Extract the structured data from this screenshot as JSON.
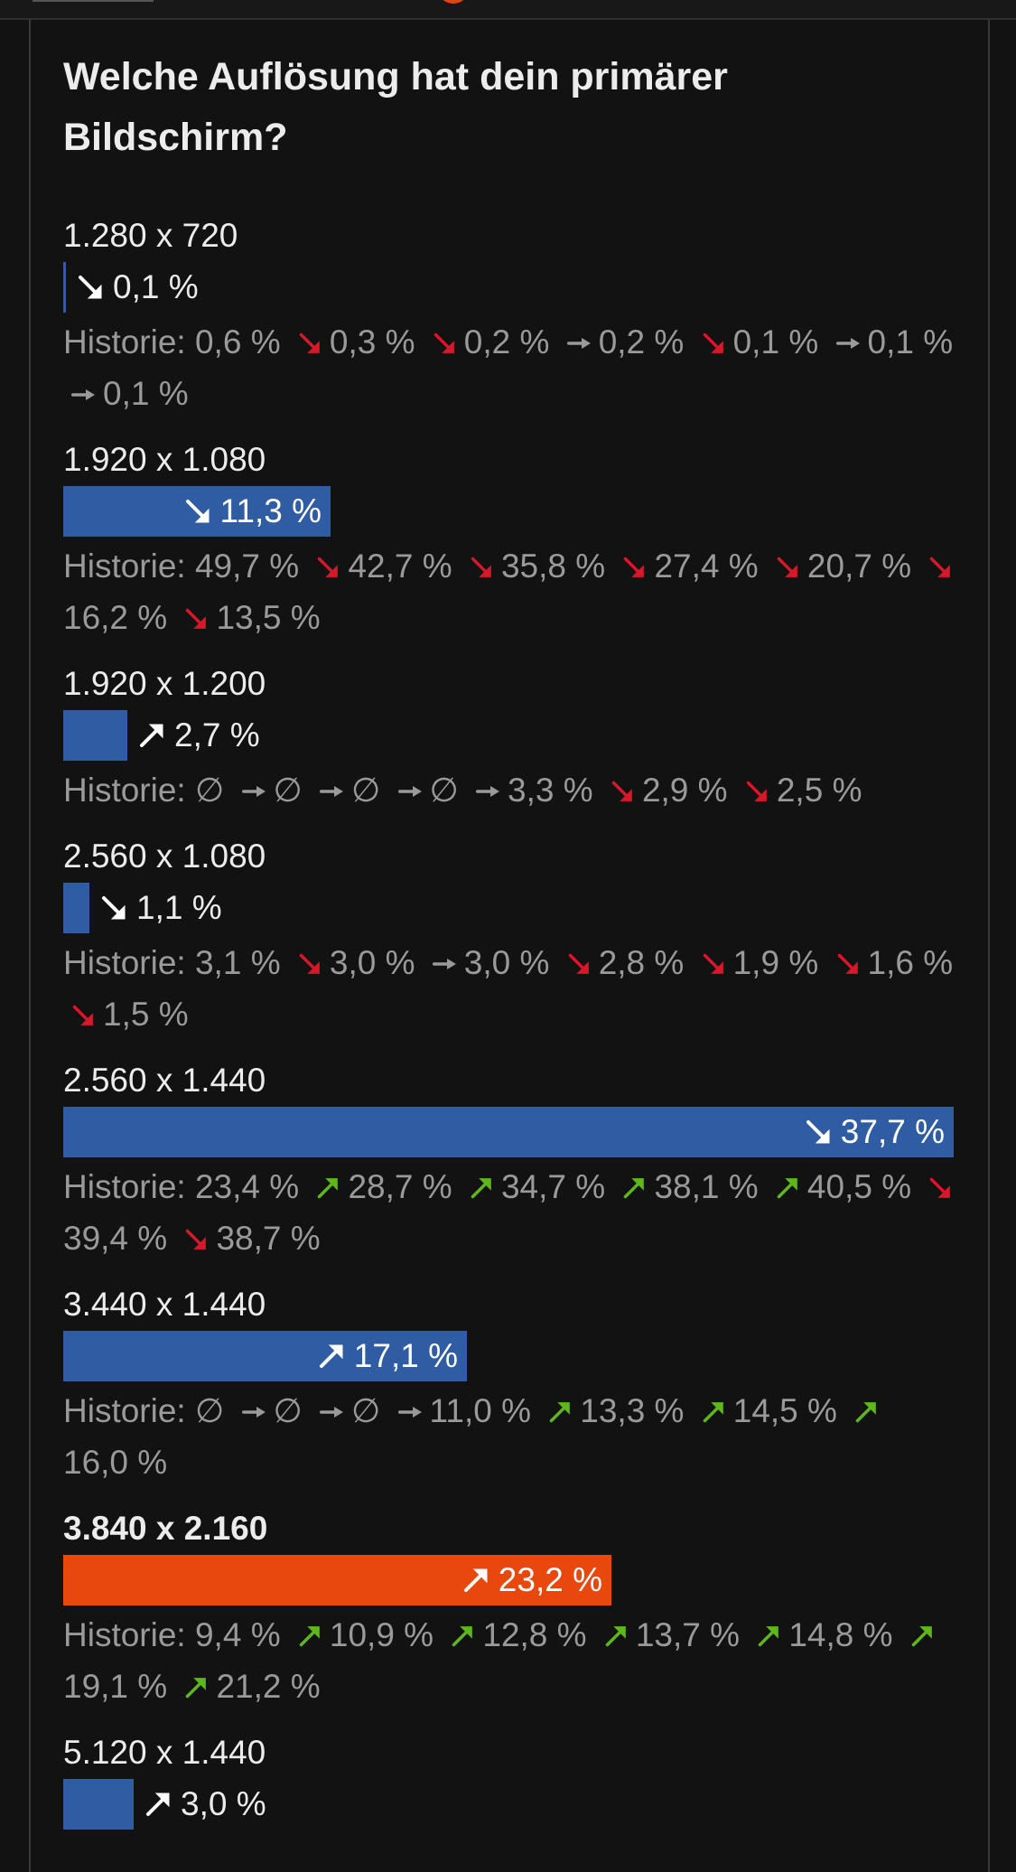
{
  "poll": {
    "title": "Welche Auflösung hat dein primärer Bildschirm?",
    "history_prefix": "Historie:",
    "colors": {
      "bar": "#2f5ca3",
      "bar_selected": "#e8480e",
      "trend_up": "#5fb61d",
      "trend_down": "#d9162a",
      "trend_flat": "#9a9a9a"
    },
    "options": [
      {
        "label": "1.280 x 720",
        "percent_text": "0,1 %",
        "percent": 0.1,
        "trend": "down",
        "selected": false,
        "history": [
          {
            "value": "0,6 %"
          },
          {
            "arrow": "down",
            "value": "0,3 %"
          },
          {
            "arrow": "down",
            "value": "0,2 %"
          },
          {
            "arrow": "flat",
            "value": "0,2 %"
          },
          {
            "arrow": "down",
            "value": "0,1 %"
          },
          {
            "arrow": "flat",
            "value": "0,1 %"
          },
          {
            "arrow": "flat",
            "value": "0,1 %"
          }
        ]
      },
      {
        "label": "1.920 x 1.080",
        "percent_text": "11,3 %",
        "percent": 11.3,
        "trend": "down",
        "selected": false,
        "history": [
          {
            "value": "49,7 %"
          },
          {
            "arrow": "down",
            "value": "42,7 %"
          },
          {
            "arrow": "down",
            "value": "35,8 %"
          },
          {
            "arrow": "down",
            "value": "27,4 %"
          },
          {
            "arrow": "down",
            "value": "20,7 %"
          },
          {
            "arrow": "down",
            "value": "16,2 %"
          },
          {
            "arrow": "down",
            "value": "13,5 %"
          }
        ]
      },
      {
        "label": "1.920 x 1.200",
        "percent_text": "2,7 %",
        "percent": 2.7,
        "trend": "up",
        "selected": false,
        "history": [
          {
            "value": "∅"
          },
          {
            "arrow": "flat",
            "value": "∅"
          },
          {
            "arrow": "flat",
            "value": "∅"
          },
          {
            "arrow": "flat",
            "value": "∅"
          },
          {
            "arrow": "flat",
            "value": "3,3 %"
          },
          {
            "arrow": "down",
            "value": "2,9 %"
          },
          {
            "arrow": "down",
            "value": "2,5 %"
          }
        ]
      },
      {
        "label": "2.560 x 1.080",
        "percent_text": "1,1 %",
        "percent": 1.1,
        "trend": "down",
        "selected": false,
        "history": [
          {
            "value": "3,1 %"
          },
          {
            "arrow": "down",
            "value": "3,0 %"
          },
          {
            "arrow": "flat",
            "value": "3,0 %"
          },
          {
            "arrow": "down",
            "value": "2,8 %"
          },
          {
            "arrow": "down",
            "value": "1,9 %"
          },
          {
            "arrow": "down",
            "value": "1,6 %"
          },
          {
            "arrow": "down",
            "value": "1,5 %"
          }
        ]
      },
      {
        "label": "2.560 x 1.440",
        "percent_text": "37,7 %",
        "percent": 37.7,
        "trend": "down",
        "selected": false,
        "history": [
          {
            "value": "23,4 %"
          },
          {
            "arrow": "up",
            "value": "28,7 %"
          },
          {
            "arrow": "up",
            "value": "34,7 %"
          },
          {
            "arrow": "up",
            "value": "38,1 %"
          },
          {
            "arrow": "up",
            "value": "40,5 %"
          },
          {
            "arrow": "down",
            "value": "39,4 %"
          },
          {
            "arrow": "down",
            "value": "38,7 %"
          }
        ]
      },
      {
        "label": "3.440 x 1.440",
        "percent_text": "17,1 %",
        "percent": 17.1,
        "trend": "up",
        "selected": false,
        "history": [
          {
            "value": "∅"
          },
          {
            "arrow": "flat",
            "value": "∅"
          },
          {
            "arrow": "flat",
            "value": "∅"
          },
          {
            "arrow": "flat",
            "value": "11,0 %"
          },
          {
            "arrow": "up",
            "value": "13,3 %"
          },
          {
            "arrow": "up",
            "value": "14,5 %"
          },
          {
            "arrow": "up",
            "value": "16,0 %"
          }
        ]
      },
      {
        "label": "3.840 x 2.160",
        "percent_text": "23,2 %",
        "percent": 23.2,
        "trend": "up",
        "selected": true,
        "history": [
          {
            "value": "9,4 %"
          },
          {
            "arrow": "up",
            "value": "10,9 %"
          },
          {
            "arrow": "up",
            "value": "12,8 %"
          },
          {
            "arrow": "up",
            "value": "13,7 %"
          },
          {
            "arrow": "up",
            "value": "14,8 %"
          },
          {
            "arrow": "up",
            "value": "19,1 %"
          },
          {
            "arrow": "up",
            "value": "21,2 %"
          }
        ]
      },
      {
        "label": "5.120 x 1.440",
        "percent_text": "3,0 %",
        "percent": 3.0,
        "trend": "up",
        "selected": false,
        "history": []
      }
    ]
  }
}
